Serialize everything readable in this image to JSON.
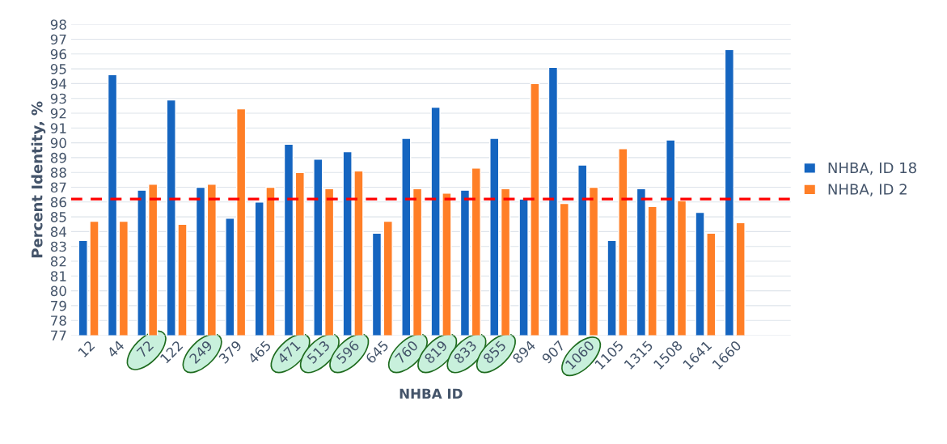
{
  "chart_data": {
    "type": "bar",
    "xlabel": "NHBA ID",
    "ylabel": "Percent Identity, %",
    "categories": [
      "12",
      "44",
      "72",
      "122",
      "249",
      "379",
      "465",
      "471",
      "513",
      "596",
      "645",
      "760",
      "819",
      "833",
      "855",
      "894",
      "907",
      "1060",
      "1105",
      "1315",
      "1508",
      "1641",
      "1660"
    ],
    "series": [
      {
        "name": "NHBA, ID 18",
        "color": "#1565c0",
        "values": [
          83.4,
          94.6,
          86.8,
          92.9,
          87.0,
          84.9,
          86.0,
          89.9,
          88.9,
          89.4,
          83.9,
          90.3,
          92.4,
          86.8,
          90.3,
          86.2,
          95.1,
          88.5,
          83.4,
          86.9,
          90.2,
          85.3,
          96.3
        ]
      },
      {
        "name": "NHBA, ID 2",
        "color": "#ff7f27",
        "values": [
          84.7,
          84.7,
          87.2,
          84.5,
          87.2,
          92.3,
          87.0,
          88.0,
          86.9,
          88.1,
          84.7,
          86.9,
          86.6,
          88.3,
          86.9,
          94.0,
          85.9,
          87.0,
          89.6,
          85.7,
          86.1,
          83.9,
          84.6
        ]
      }
    ],
    "ylim": [
      77,
      98
    ],
    "yticks": [
      77,
      78,
      79,
      80,
      81,
      82,
      83,
      84,
      85,
      86,
      87,
      88,
      89,
      90,
      91,
      92,
      93,
      94,
      95,
      96,
      97,
      98
    ],
    "ref_lines": [
      {
        "axis": "y",
        "value": 86.2,
        "color": "#ff0000",
        "line_style": "dashed"
      }
    ],
    "grid": "y",
    "legend": "right"
  }
}
